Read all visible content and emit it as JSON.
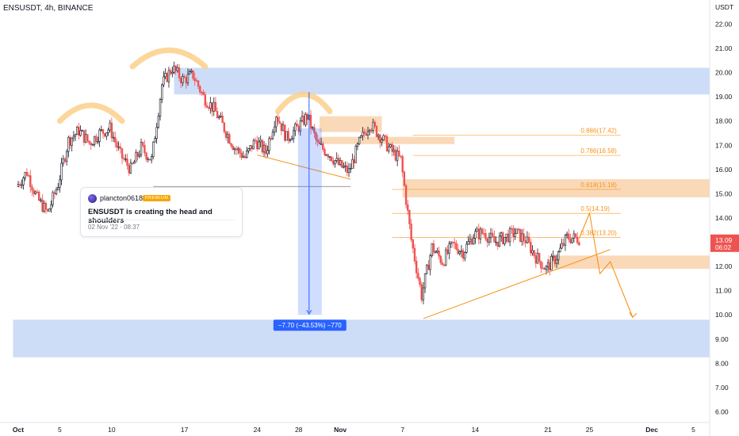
{
  "header": {
    "symbol_line": "ENSUSDT, 4h, BINANCE",
    "currency": "USDT"
  },
  "idea": {
    "author": "plancton0618",
    "badge": "PREMIUM",
    "title": "ENSUSDT is creating the head and shoulders",
    "date": "02 Nov '22 · 08:37"
  },
  "measure_label": "−7.70 (−43.53%) −770",
  "current_price": {
    "price": "13.09",
    "countdown": "06:02",
    "value": 13.09,
    "color": "#ef5350"
  },
  "colors": {
    "up": "#26a69a",
    "down": "#ef5350",
    "candle": "#131722",
    "zone_blue": "#bcd1f5",
    "zone_orange": "#f9cfa6",
    "fib": "#f7931a",
    "measure": "#2962ff"
  },
  "chart_data": {
    "type": "candlestick",
    "title": "ENSUSDT, 4h, BINANCE",
    "y_unit": "USDT",
    "ylim": [
      5.6,
      23.0
    ],
    "y_ticks": [
      "22.00",
      "21.00",
      "20.00",
      "19.00",
      "18.00",
      "17.00",
      "16.00",
      "15.00",
      "14.00",
      "13.00",
      "12.00",
      "11.00",
      "10.00",
      "9.00",
      "8.00",
      "7.00",
      "6.00"
    ],
    "x_ticks": [
      "Oct",
      "5",
      "10",
      "17",
      "24",
      "28",
      "Nov",
      "7",
      "14",
      "21",
      "25",
      "Dec",
      "5"
    ],
    "x_tick_bold": [
      "Oct",
      "Nov",
      "Dec"
    ],
    "path_points": [
      {
        "date": "Oct 1",
        "price": 15.3
      },
      {
        "date": "Oct 2",
        "price": 15.9
      },
      {
        "date": "Oct 3",
        "price": 14.8
      },
      {
        "date": "Oct 4",
        "price": 14.2
      },
      {
        "date": "Oct 5",
        "price": 15.4
      },
      {
        "date": "Oct 6",
        "price": 17.2
      },
      {
        "date": "Oct 7",
        "price": 17.6
      },
      {
        "date": "Oct 8",
        "price": 17.1
      },
      {
        "date": "Oct 9",
        "price": 17.5
      },
      {
        "date": "Oct 10",
        "price": 17.7
      },
      {
        "date": "Oct 11",
        "price": 16.6
      },
      {
        "date": "Oct 12",
        "price": 16.0
      },
      {
        "date": "Oct 13",
        "price": 16.9
      },
      {
        "date": "Oct 14",
        "price": 16.4
      },
      {
        "date": "Oct 15",
        "price": 19.5
      },
      {
        "date": "Oct 16",
        "price": 20.2
      },
      {
        "date": "Oct 17",
        "price": 19.7
      },
      {
        "date": "Oct 18",
        "price": 19.9
      },
      {
        "date": "Oct 19",
        "price": 19.0
      },
      {
        "date": "Oct 20",
        "price": 18.5
      },
      {
        "date": "Oct 21",
        "price": 17.7
      },
      {
        "date": "Oct 22",
        "price": 16.9
      },
      {
        "date": "Oct 23",
        "price": 16.5
      },
      {
        "date": "Oct 24",
        "price": 17.2
      },
      {
        "date": "Oct 25",
        "price": 16.7
      },
      {
        "date": "Oct 26",
        "price": 18.3
      },
      {
        "date": "Oct 27",
        "price": 17.3
      },
      {
        "date": "Oct 28",
        "price": 17.7
      },
      {
        "date": "Oct 29",
        "price": 18.2
      },
      {
        "date": "Oct 30",
        "price": 17.0
      },
      {
        "date": "Oct 31",
        "price": 16.7
      },
      {
        "date": "Nov 1",
        "price": 16.2
      },
      {
        "date": "Nov 2",
        "price": 15.9
      },
      {
        "date": "Nov 3",
        "price": 17.1
      },
      {
        "date": "Nov 4",
        "price": 17.9
      },
      {
        "date": "Nov 5",
        "price": 17.4
      },
      {
        "date": "Nov 6",
        "price": 16.8
      },
      {
        "date": "Nov 7",
        "price": 16.4
      },
      {
        "date": "Nov 8",
        "price": 13.1
      },
      {
        "date": "Nov 9",
        "price": 10.8
      },
      {
        "date": "Nov 10",
        "price": 12.8
      },
      {
        "date": "Nov 11",
        "price": 12.2
      },
      {
        "date": "Nov 12",
        "price": 12.9
      },
      {
        "date": "Nov 13",
        "price": 12.6
      },
      {
        "date": "Nov 14",
        "price": 13.3
      },
      {
        "date": "Nov 15",
        "price": 13.4
      },
      {
        "date": "Nov 16",
        "price": 13.0
      },
      {
        "date": "Nov 17",
        "price": 13.2
      },
      {
        "date": "Nov 18",
        "price": 13.4
      },
      {
        "date": "Nov 19",
        "price": 13.1
      },
      {
        "date": "Nov 20",
        "price": 12.4
      },
      {
        "date": "Nov 21",
        "price": 11.9
      },
      {
        "date": "Nov 22",
        "price": 12.4
      },
      {
        "date": "Nov 23",
        "price": 13.2
      },
      {
        "date": "Nov 24",
        "price": 13.15
      }
    ],
    "fib_levels": [
      {
        "ratio": "0.886",
        "price": 17.42,
        "label": "0.886(17.42)"
      },
      {
        "ratio": "0.786",
        "price": 16.58,
        "label": "0.786(16.58)"
      },
      {
        "ratio": "0.618",
        "price": 15.18,
        "label": "0.618(15.18)"
      },
      {
        "ratio": "0.5",
        "price": 14.19,
        "label": "0.5(14.19)"
      },
      {
        "ratio": "0.382",
        "price": 13.2,
        "label": "0.382(13.20)"
      }
    ],
    "zones": [
      {
        "color": "blue",
        "from_date": "Oct 16",
        "to_date": "end",
        "low": 19.1,
        "high": 20.2
      },
      {
        "color": "blue",
        "from_date": "start",
        "to_date": "end",
        "low": 8.25,
        "high": 9.8
      },
      {
        "color": "orange",
        "from_date": "Oct 30",
        "to_date": "Nov 5",
        "low": 17.55,
        "high": 18.2
      },
      {
        "color": "orange",
        "from_date": "Oct 30",
        "to_date": "Nov 12",
        "low": 17.05,
        "high": 17.35
      },
      {
        "color": "orange",
        "from_date": "Nov 7",
        "to_date": "end",
        "low": 14.85,
        "high": 15.6
      },
      {
        "color": "orange",
        "from_date": "Nov 21",
        "to_date": "end",
        "low": 11.9,
        "high": 12.45
      }
    ],
    "measure": {
      "from_price": 17.7,
      "to_price": 10.0,
      "change": "−7.70",
      "percent": "−43.53%",
      "ticks": "−770"
    },
    "pattern": "head and shoulders",
    "grid": false
  }
}
